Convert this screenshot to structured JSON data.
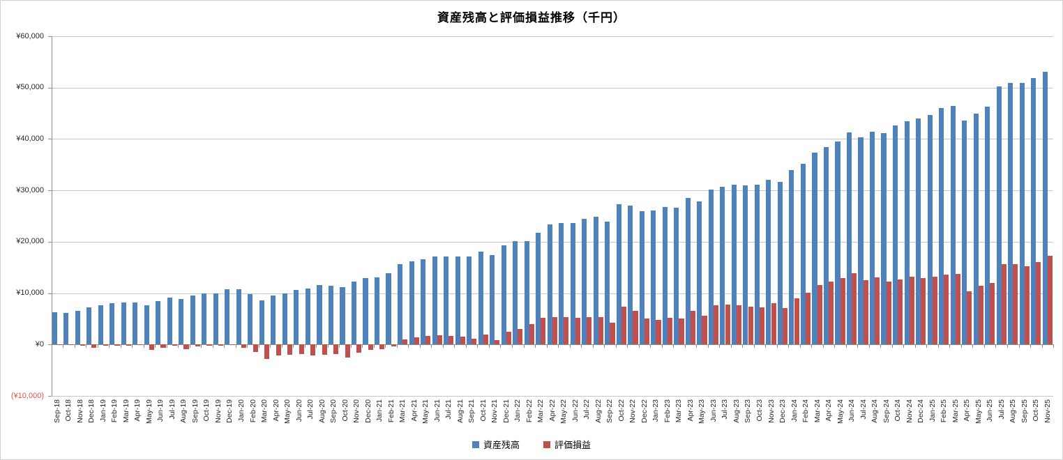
{
  "chart_data": {
    "type": "bar",
    "title": "資産残高と評価損益推移（千円）",
    "unit": "千円",
    "grid": true,
    "legend_position": "bottom",
    "ylim": [
      -10000,
      60000
    ],
    "ytick_interval": 10000,
    "yticks": [
      {
        "label": "¥60,000",
        "value": 60000,
        "negative": false
      },
      {
        "label": "¥50,000",
        "value": 50000,
        "negative": false
      },
      {
        "label": "¥40,000",
        "value": 40000,
        "negative": false
      },
      {
        "label": "¥30,000",
        "value": 30000,
        "negative": false
      },
      {
        "label": "¥20,000",
        "value": 20000,
        "negative": false
      },
      {
        "label": "¥10,000",
        "value": 10000,
        "negative": false
      },
      {
        "label": "¥0",
        "value": 0,
        "negative": false
      },
      {
        "label": "(¥10,000)",
        "value": -10000,
        "negative": true
      }
    ],
    "categories": [
      "Sep-18",
      "Oct-18",
      "Nov-18",
      "Dec-18",
      "Jan-19",
      "Feb-19",
      "Mar-19",
      "Apr-19",
      "May-19",
      "Jun-19",
      "Jul-19",
      "Aug-19",
      "Sep-19",
      "Oct-19",
      "Nov-19",
      "Dec-19",
      "Jan-20",
      "Feb-20",
      "Mar-20",
      "Apr-20",
      "May-20",
      "Jun-20",
      "Jul-20",
      "Aug-20",
      "Sep-20",
      "Oct-20",
      "Nov-20",
      "Dec-20",
      "Jan-21",
      "Feb-21",
      "Mar-21",
      "Apr-21",
      "May-21",
      "Jun-21",
      "Jul-21",
      "Aug-21",
      "Sep-21",
      "Oct-21",
      "Nov-21",
      "Dec-21",
      "Jan-22",
      "Feb-22",
      "Mar-22",
      "Apr-22",
      "May-22",
      "Jun-22",
      "Jul-22",
      "Aug-22",
      "Sep-22",
      "Oct-22",
      "Nov-22",
      "Dec-22",
      "Jan-23",
      "Feb-23",
      "Mar-23",
      "Apr-23",
      "May-23",
      "Jun-23",
      "Jul-23",
      "Aug-23",
      "Sep-23",
      "Oct-23",
      "Nov-23",
      "Dec-23",
      "Jan-24",
      "Feb-24",
      "Mar-24",
      "Apr-24",
      "May-24",
      "Jun-24",
      "Jul-24",
      "Aug-24",
      "Sep-24",
      "Oct-24",
      "Nov-24",
      "Dec-24",
      "Jan-25",
      "Feb-25",
      "Mar-25",
      "Apr-25",
      "May-25",
      "Jun-25",
      "Jul-25",
      "Aug-25",
      "Sep-25",
      "Oct-25",
      "Nov-25"
    ],
    "series": [
      {
        "name": "資産残高",
        "color": "#4F81BD",
        "values": [
          6300,
          6200,
          6500,
          7200,
          7600,
          8000,
          8200,
          8200,
          7600,
          8500,
          9200,
          8900,
          9500,
          9900,
          10000,
          10800,
          10700,
          9800,
          8600,
          9600,
          9900,
          10600,
          10900,
          11600,
          11400,
          11200,
          12200,
          13000,
          13100,
          13900,
          15600,
          16200,
          16600,
          17100,
          17100,
          17200,
          17100,
          18100,
          17400,
          19300,
          20100,
          20100,
          21800,
          23400,
          23600,
          23600,
          24500,
          24900,
          23900,
          27300,
          27000,
          26000,
          26100,
          26800,
          26700,
          28500,
          27800,
          30100,
          30700,
          31100,
          31000,
          31100,
          32100,
          31600,
          33900,
          35200,
          37300,
          38400,
          39500,
          41300,
          40400,
          41400,
          41100,
          42600,
          43500,
          44000,
          44700,
          46000,
          46500,
          43600,
          45000,
          46300,
          50300,
          50900,
          50900,
          51800,
          53100
        ]
      },
      {
        "name": "評価損益",
        "color": "#C0504D",
        "values": [
          -150,
          -150,
          -200,
          -700,
          -300,
          -250,
          -250,
          -150,
          -1000,
          -650,
          -250,
          -900,
          -350,
          -250,
          -300,
          -150,
          -600,
          -1450,
          -2750,
          -2100,
          -1950,
          -1800,
          -2100,
          -1950,
          -1800,
          -2550,
          -1650,
          -1050,
          -900,
          -400,
          1000,
          1450,
          1650,
          1850,
          1700,
          1500,
          1200,
          1900,
          900,
          2450,
          3000,
          4000,
          5150,
          5300,
          5400,
          5150,
          5400,
          5400,
          4200,
          7400,
          6600,
          5000,
          4800,
          5200,
          5000,
          6500,
          5600,
          7600,
          7750,
          7700,
          7400,
          7200,
          8100,
          7100,
          9000,
          10100,
          11600,
          12200,
          13000,
          13900,
          12500,
          13100,
          12200,
          12700,
          13200,
          13000,
          13200,
          13600,
          13800,
          10400,
          11500,
          12000,
          15600,
          15700,
          15300,
          16100,
          17300
        ]
      }
    ]
  },
  "colors": {
    "asset": "#4F81BD",
    "pnl": "#C0504D",
    "gridline": "#c6c6c6",
    "axis": "#8c8c8c",
    "tick_label": "#262626",
    "negative_label": "#e0524c",
    "border": "#d0d0d0",
    "background": "#ffffff"
  }
}
